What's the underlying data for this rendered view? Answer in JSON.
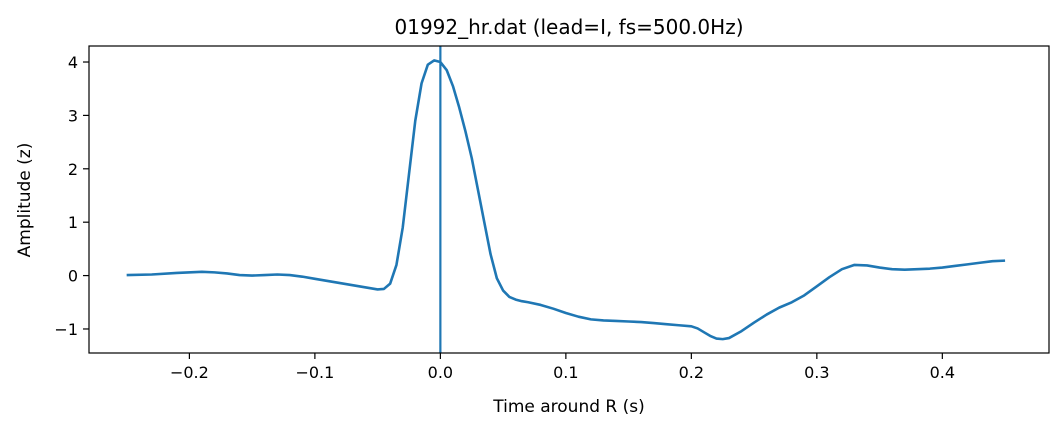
{
  "chart_data": {
    "type": "line",
    "title": "01992_hr.dat (lead=I, fs=500.0Hz)",
    "xlabel": "Time around R (s)",
    "ylabel": "Amplitude (z)",
    "xlim": [
      -0.28,
      0.485
    ],
    "ylim": [
      -1.45,
      4.3
    ],
    "xticks": [
      {
        "value": -0.2,
        "label": "−0.2"
      },
      {
        "value": -0.1,
        "label": "−0.1"
      },
      {
        "value": 0.0,
        "label": "0.0"
      },
      {
        "value": 0.1,
        "label": "0.1"
      },
      {
        "value": 0.2,
        "label": "0.2"
      },
      {
        "value": 0.3,
        "label": "0.3"
      },
      {
        "value": 0.4,
        "label": "0.4"
      }
    ],
    "yticks": [
      {
        "value": -1,
        "label": "−1"
      },
      {
        "value": 0,
        "label": "0"
      },
      {
        "value": 1,
        "label": "1"
      },
      {
        "value": 2,
        "label": "2"
      },
      {
        "value": 3,
        "label": "3"
      },
      {
        "value": 4,
        "label": "4"
      }
    ],
    "vline": {
      "x": 0.0,
      "color": "#1f77b4"
    },
    "grid": false,
    "legend": "none",
    "series": [
      {
        "color": "#1f77b4",
        "x": [
          -0.25,
          -0.23,
          -0.21,
          -0.19,
          -0.18,
          -0.17,
          -0.16,
          -0.15,
          -0.14,
          -0.13,
          -0.12,
          -0.11,
          -0.1,
          -0.09,
          -0.08,
          -0.07,
          -0.06,
          -0.05,
          -0.045,
          -0.04,
          -0.035,
          -0.03,
          -0.025,
          -0.02,
          -0.015,
          -0.01,
          -0.005,
          0.0,
          0.005,
          0.01,
          0.015,
          0.02,
          0.025,
          0.03,
          0.035,
          0.04,
          0.045,
          0.05,
          0.055,
          0.06,
          0.065,
          0.07,
          0.08,
          0.09,
          0.1,
          0.11,
          0.12,
          0.13,
          0.14,
          0.15,
          0.16,
          0.17,
          0.18,
          0.19,
          0.2,
          0.205,
          0.21,
          0.215,
          0.22,
          0.225,
          0.23,
          0.24,
          0.25,
          0.26,
          0.27,
          0.28,
          0.29,
          0.3,
          0.31,
          0.32,
          0.33,
          0.34,
          0.35,
          0.36,
          0.37,
          0.38,
          0.39,
          0.4,
          0.41,
          0.42,
          0.43,
          0.44,
          0.45
        ],
        "y": [
          0.01,
          0.02,
          0.05,
          0.07,
          0.06,
          0.04,
          0.01,
          0.0,
          0.01,
          0.02,
          0.01,
          -0.02,
          -0.06,
          -0.1,
          -0.14,
          -0.18,
          -0.22,
          -0.26,
          -0.25,
          -0.15,
          0.2,
          0.9,
          1.9,
          2.9,
          3.6,
          3.95,
          4.03,
          4.0,
          3.85,
          3.55,
          3.15,
          2.7,
          2.2,
          1.6,
          1.0,
          0.4,
          -0.05,
          -0.28,
          -0.4,
          -0.45,
          -0.48,
          -0.5,
          -0.55,
          -0.62,
          -0.7,
          -0.77,
          -0.82,
          -0.84,
          -0.85,
          -0.86,
          -0.87,
          -0.89,
          -0.91,
          -0.93,
          -0.95,
          -0.99,
          -1.06,
          -1.13,
          -1.18,
          -1.19,
          -1.17,
          -1.04,
          -0.88,
          -0.73,
          -0.6,
          -0.5,
          -0.37,
          -0.2,
          -0.03,
          0.12,
          0.2,
          0.19,
          0.15,
          0.12,
          0.11,
          0.12,
          0.13,
          0.15,
          0.18,
          0.21,
          0.24,
          0.27,
          0.28
        ]
      }
    ]
  }
}
